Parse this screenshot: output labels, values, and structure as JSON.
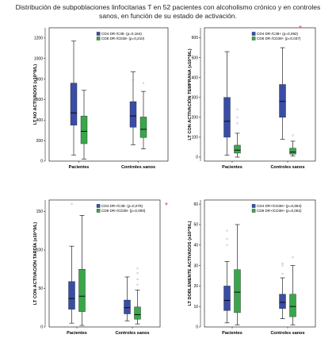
{
  "title_line1": "Distribución de subpoblaciones linfocitarias T en 52 pacientes con alcoholismo crónico y en controles",
  "title_line2": "sanos, en función de su estado de activación.",
  "colors": {
    "blue": "#3a4da6",
    "green": "#3aa64a",
    "panel_bg": "#ffffff",
    "significance": "#e23b3b"
  },
  "chart_data": [
    {
      "type": "box",
      "ylabel": "LT NO ACTIVADOS (x10^9/L)",
      "ylim": [
        0,
        1300
      ],
      "yticks": [
        "0",
        "200",
        "400",
        "600",
        "800",
        "1000",
        "1200"
      ],
      "categories": [
        "Pacientes",
        "Controles sanos"
      ],
      "significance_mark": "",
      "series": [
        {
          "name": "CD4 DR-/C38- (p=0,164)",
          "color": "blue",
          "boxes": [
            {
              "min": 60,
              "q1": 350,
              "median": 470,
              "q3": 760,
              "max": 1170
            },
            {
              "min": 160,
              "q1": 330,
              "median": 440,
              "q3": 580,
              "max": 870
            }
          ],
          "outliers": [
            [],
            [
              790
            ]
          ]
        },
        {
          "name": "CD8 DR-/CD38- (p=0,210)",
          "color": "green",
          "boxes": [
            {
              "min": 20,
              "q1": 170,
              "median": 290,
              "q3": 440,
              "max": 690
            },
            {
              "min": 120,
              "q1": 230,
              "median": 310,
              "q3": 430,
              "max": 680
            }
          ],
          "outliers": [
            [],
            [
              760
            ]
          ]
        }
      ]
    },
    {
      "type": "box",
      "ylabel": "LT CON ACTIVACIÓN TEMPRANA (x10^9/L)",
      "ylim": [
        -20,
        650
      ],
      "yticks": [
        "0",
        "100",
        "200",
        "300",
        "400",
        "500",
        "600"
      ],
      "categories": [
        "Pacientes",
        "Controles sanos"
      ],
      "significance_mark": "*",
      "series": [
        {
          "name": "CD4 DR-/C38+ (p=0,092)",
          "color": "blue",
          "boxes": [
            {
              "min": 10,
              "q1": 100,
              "median": 180,
              "q3": 300,
              "max": 530
            },
            {
              "min": 90,
              "q1": 200,
              "median": 280,
              "q3": 365,
              "max": 550
            }
          ],
          "outliers": [
            [],
            []
          ]
        },
        {
          "name": "CD8 DR-/CD38+ (p=0,037)",
          "color": "green",
          "boxes": [
            {
              "min": 0,
              "q1": 20,
              "median": 35,
              "q3": 60,
              "max": 120
            },
            {
              "min": 5,
              "q1": 15,
              "median": 25,
              "q3": 45,
              "max": 80
            }
          ],
          "outliers": [
            [
              170,
              200,
              240
            ],
            [
              110
            ]
          ]
        }
      ]
    },
    {
      "type": "box",
      "ylabel": "LT CON ACTIVACIÓN TARDÍA (x10^9/L)",
      "ylim": [
        0,
        165
      ],
      "yticks": [
        "0",
        "50",
        "100",
        "150"
      ],
      "categories": [
        "Pacientes",
        "Controles sanos"
      ],
      "significance_mark": "*",
      "series": [
        {
          "name": "CD4 DR+/C38- (p=0,076)",
          "color": "blue",
          "boxes": [
            {
              "min": 5,
              "q1": 23,
              "median": 37,
              "q3": 59,
              "max": 105
            },
            {
              "min": 8,
              "q1": 17,
              "median": 25,
              "q3": 35,
              "max": 65
            }
          ],
          "outliers": [
            [
              160
            ],
            []
          ]
        },
        {
          "name": "CD8 DR+/CD38- (p=0,000)",
          "color": "green",
          "boxes": [
            {
              "min": 2,
              "q1": 20,
              "median": 40,
              "q3": 75,
              "max": 145
            },
            {
              "min": 4,
              "q1": 10,
              "median": 16,
              "q3": 26,
              "max": 48
            }
          ],
          "outliers": [
            [],
            [
              55,
              62,
              70,
              76
            ]
          ]
        }
      ]
    },
    {
      "type": "box",
      "ylabel": "LT DOBLEMENTE ACTIVADOS (x10^9/L)",
      "ylim": [
        0,
        62
      ],
      "yticks": [
        "0",
        "10",
        "20",
        "30",
        "40",
        "50",
        "60"
      ],
      "categories": [
        "Pacientes",
        "Controles sanos"
      ],
      "significance_mark": "",
      "series": [
        {
          "name": "CD4 DR+/CD38+ (p=0,694)",
          "color": "blue",
          "boxes": [
            {
              "min": 2,
              "q1": 8,
              "median": 13,
              "q3": 20,
              "max": 32
            },
            {
              "min": 4,
              "q1": 9,
              "median": 12,
              "q3": 16,
              "max": 24
            }
          ],
          "outliers": [
            [
              40,
              43,
              47
            ],
            [
              26,
              30,
              31
            ]
          ]
        },
        {
          "name": "CD8 DR+/CD38+ (p=0,062)",
          "color": "green",
          "boxes": [
            {
              "min": 1,
              "q1": 7,
              "median": 17,
              "q3": 28,
              "max": 50
            },
            {
              "min": 1,
              "q1": 5,
              "median": 10,
              "q3": 16,
              "max": 30
            }
          ],
          "outliers": [
            [],
            [
              34
            ]
          ]
        }
      ]
    }
  ]
}
